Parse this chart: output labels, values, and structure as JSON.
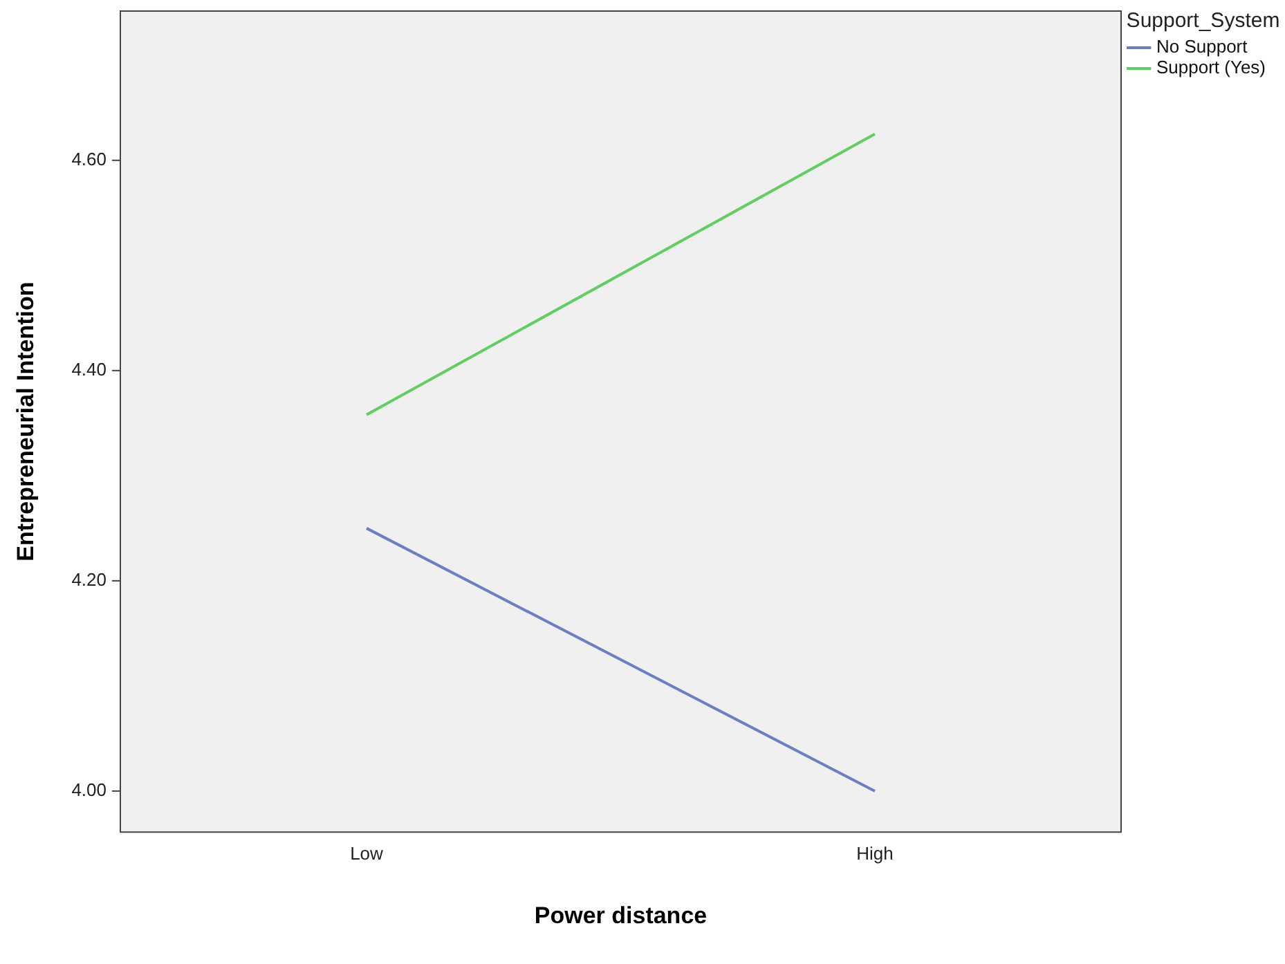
{
  "chart_data": {
    "type": "line",
    "xlabel": "Power distance",
    "ylabel": "Entrepreneurial Intention",
    "legend_title": "Support_System",
    "categories": [
      "Low",
      "High"
    ],
    "series": [
      {
        "name": "No Support",
        "color": "#6b7fc6",
        "values": [
          4.25,
          4.0
        ]
      },
      {
        "name": "Support (Yes)",
        "color": "#5fcf5f",
        "values": [
          4.358,
          4.625
        ]
      }
    ],
    "ylim": [
      3.961,
      4.742
    ],
    "yticks": [
      {
        "value": 4.0,
        "label": "4.00"
      },
      {
        "value": 4.2,
        "label": "4.20"
      },
      {
        "value": 4.4,
        "label": "4.40"
      },
      {
        "value": 4.6,
        "label": "4.60"
      }
    ],
    "grid": false,
    "legend": "top right",
    "marker": "none",
    "line_style": "solid"
  }
}
